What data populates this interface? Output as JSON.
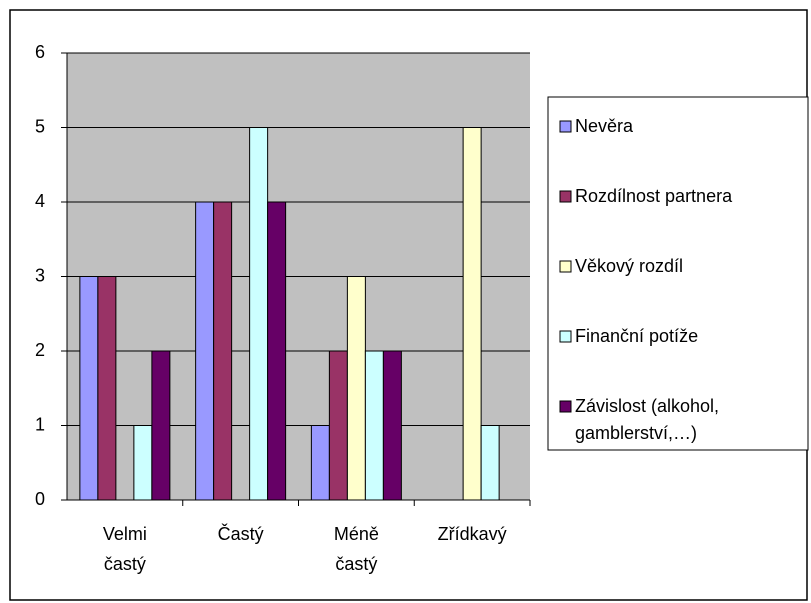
{
  "chart_data": {
    "type": "bar",
    "categories": [
      "Velmi častý",
      "Častý",
      "Méně častý",
      "Zřídkavý"
    ],
    "series": [
      {
        "name": "Nevěra",
        "color": "#9999ff",
        "values": [
          3,
          4,
          1,
          0
        ]
      },
      {
        "name": "Rozdílnost partnera",
        "color": "#993366",
        "values": [
          3,
          4,
          2,
          0
        ]
      },
      {
        "name": "Věkový rozdíl",
        "color": "#ffffcc",
        "values": [
          0,
          0,
          3,
          5
        ]
      },
      {
        "name": "Finanční potíže",
        "color": "#ccffff",
        "values": [
          1,
          5,
          2,
          1
        ]
      },
      {
        "name": "Závislost (alkohol, gamblerství,…)",
        "color": "#660066",
        "values": [
          2,
          4,
          2,
          0
        ]
      }
    ],
    "ylim": [
      0,
      6
    ],
    "yticks": [
      0,
      1,
      2,
      3,
      4,
      5,
      6
    ],
    "grid": true,
    "legend": "right"
  }
}
